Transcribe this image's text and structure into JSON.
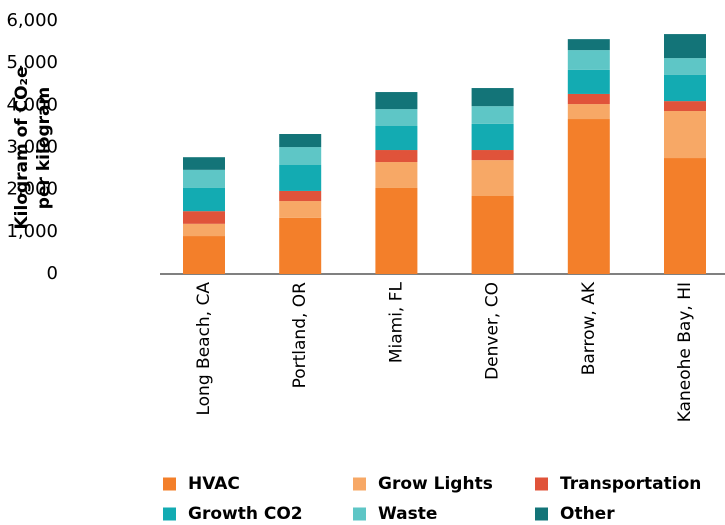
{
  "chart_data": {
    "type": "stacked_bar",
    "ylabel": [
      "Kilogram of CO₂e",
      "per kilogram"
    ],
    "categories": [
      "Long Beach, CA",
      "Portland, OR",
      "Miami, FL",
      "Denver, CO",
      "Barrow, AK",
      "Kaneohe Bay, HI"
    ],
    "series": [
      {
        "name": "HVAC",
        "color": "#f37f2a",
        "values": [
          900,
          1330,
          2040,
          1850,
          3675,
          2750
        ]
      },
      {
        "name": "Grow Lights",
        "color": "#f7a866",
        "values": [
          290,
          400,
          615,
          850,
          355,
          1115
        ]
      },
      {
        "name": "Transportation",
        "color": "#e0533a",
        "values": [
          300,
          240,
          285,
          240,
          240,
          235
        ]
      },
      {
        "name": "Growth CO2",
        "color": "#13abb2",
        "values": [
          550,
          615,
          570,
          620,
          570,
          620
        ]
      },
      {
        "name": "Waste",
        "color": "#5ec6c6",
        "values": [
          430,
          425,
          400,
          420,
          470,
          400
        ]
      },
      {
        "name": "Other",
        "color": "#137478",
        "values": [
          300,
          310,
          405,
          430,
          260,
          570
        ]
      }
    ],
    "ylim": [
      0,
      6000
    ],
    "yticks": [
      0,
      {
        "value": 1000,
        "label": "1,000"
      },
      {
        "value": 2000,
        "label": "2,000"
      },
      {
        "value": 3000,
        "label": "3,000"
      },
      {
        "value": 4000,
        "label": "4,000"
      },
      {
        "value": 5000,
        "label": "5,000"
      },
      {
        "value": 6000,
        "label": "6,000"
      }
    ]
  }
}
